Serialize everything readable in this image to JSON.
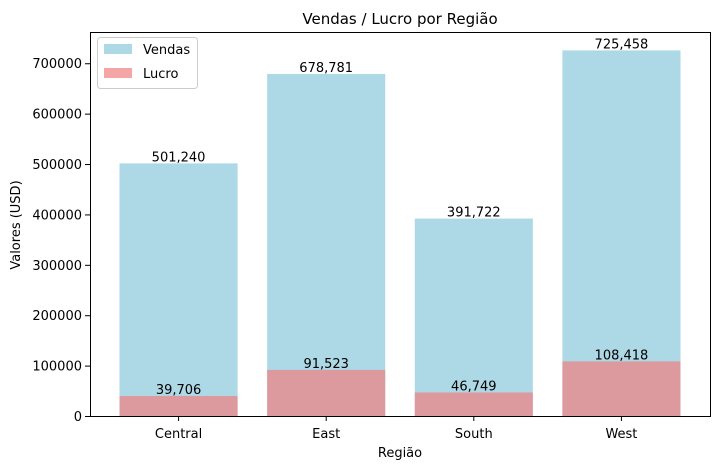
{
  "chart_data": {
    "type": "bar",
    "title": "Vendas / Lucro por Região",
    "xlabel": "Região",
    "ylabel": "Valores (USD)",
    "categories": [
      "Central",
      "East",
      "South",
      "West"
    ],
    "ylim": [
      0,
      762000
    ],
    "yticks": [
      0,
      100000,
      200000,
      300000,
      400000,
      500000,
      600000,
      700000
    ],
    "legend_position": "top-left",
    "grid": false,
    "series": [
      {
        "name": "Vendas",
        "color": "#add8e6",
        "values": [
          501240,
          678781,
          391722,
          725458
        ],
        "labels": [
          "501,240",
          "678,781",
          "391,722",
          "725,458"
        ]
      },
      {
        "name": "Lucro",
        "color": "#f08080",
        "opacity": 0.7,
        "values": [
          39706,
          91523,
          46749,
          108418
        ],
        "labels": [
          "39,706",
          "91,523",
          "46,749",
          "108,418"
        ]
      }
    ]
  }
}
